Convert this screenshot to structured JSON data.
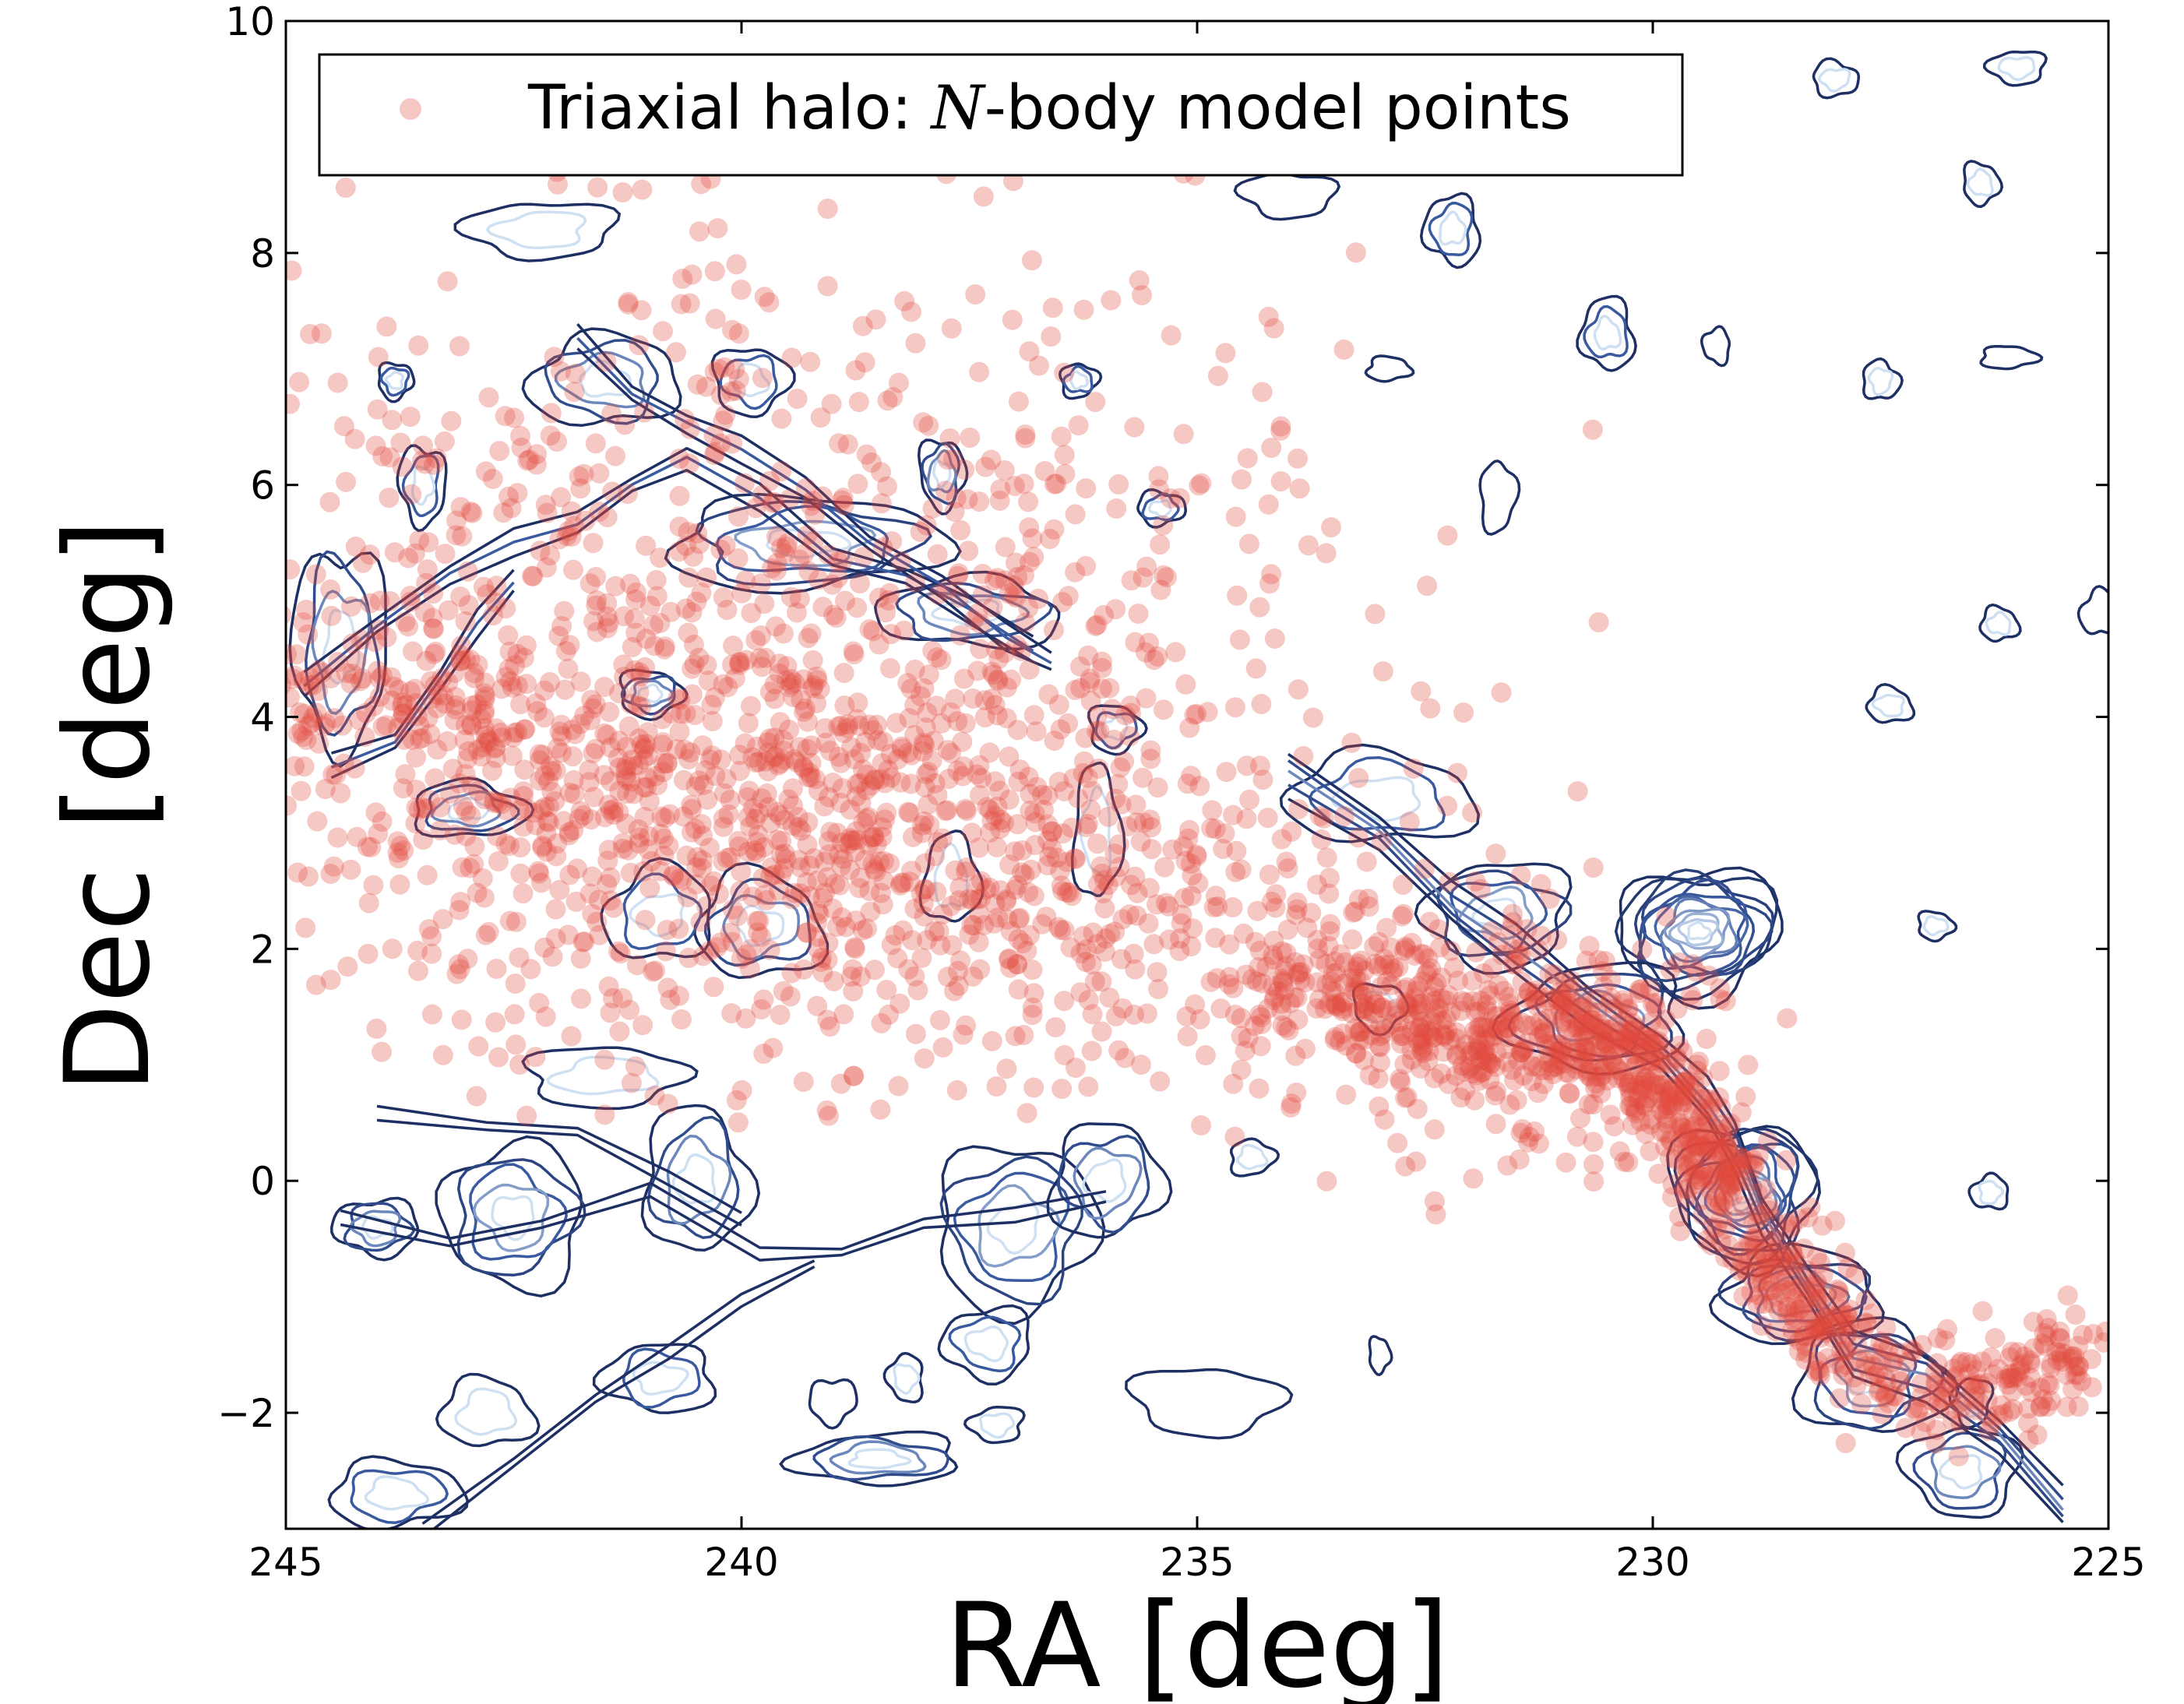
{
  "chart_data": {
    "type": "scatter",
    "xlabel": "RA [deg]",
    "ylabel": "Dec [deg]",
    "xlim": [
      245,
      225
    ],
    "ylim": [
      -3,
      10
    ],
    "x_axis_inverted": true,
    "xticks": [
      245,
      240,
      235,
      230,
      225
    ],
    "yticks": [
      -2,
      0,
      2,
      4,
      6,
      8,
      10
    ],
    "ytick_labels": [
      "−2",
      "0",
      "2",
      "4",
      "6",
      "8",
      "10"
    ],
    "legend": {
      "label_prefix": "Triaxial halo: ",
      "label_math": "N",
      "label_suffix": "-body model points",
      "placement": "top-left"
    },
    "colors": {
      "points": "#e04a3a",
      "contour_outer": "#1d2f63",
      "contour_mid": "#3a5aa0",
      "contour_inner": "#cfe0f2",
      "frame": "#000000"
    },
    "series": [
      {
        "name": "Triaxial halo: N-body model points",
        "kind": "scatter",
        "opacity": 0.3,
        "stream_track": [
          [
            230.0,
            1.0
          ],
          [
            231.5,
            1.3
          ],
          [
            232.5,
            1.4
          ],
          [
            234.0,
            1.9
          ],
          [
            236.0,
            2.4
          ],
          [
            238.0,
            3.0
          ],
          [
            240.0,
            3.2
          ],
          [
            242.0,
            3.5
          ],
          [
            244.0,
            4.0
          ],
          [
            245.0,
            4.2
          ]
        ],
        "core_track": [
          [
            225.2,
            -1.5
          ],
          [
            226.0,
            -1.6
          ],
          [
            227.0,
            -1.9
          ],
          [
            228.0,
            -1.3
          ],
          [
            228.5,
            -0.9
          ],
          [
            229.0,
            -0.3
          ],
          [
            229.3,
            0.2
          ],
          [
            229.6,
            0.5
          ],
          [
            230.0,
            0.9
          ],
          [
            230.5,
            1.2
          ],
          [
            231.0,
            1.3
          ],
          [
            232.0,
            1.2
          ],
          [
            233.0,
            1.5
          ],
          [
            234.0,
            1.7
          ]
        ],
        "cloud": {
          "ra_range": [
            230.5,
            245
          ],
          "dec_range": [
            0.5,
            9.5
          ],
          "center": [
            239.5,
            4.0
          ]
        }
      },
      {
        "name": "density contours",
        "kind": "contour",
        "blobs": [
          {
            "ra": 229.5,
            "dec": 2.15,
            "rx": 0.9,
            "ry": 0.55,
            "levels": 12
          },
          {
            "ra": 229.0,
            "dec": -0.1,
            "rx": 0.8,
            "ry": 0.6,
            "levels": 11
          },
          {
            "ra": 228.4,
            "dec": -1.0,
            "rx": 0.9,
            "ry": 0.4,
            "levels": 6
          },
          {
            "ra": 227.6,
            "dec": -1.7,
            "rx": 0.8,
            "ry": 0.5,
            "levels": 5
          },
          {
            "ra": 226.6,
            "dec": -2.5,
            "rx": 0.6,
            "ry": 0.4,
            "levels": 4
          },
          {
            "ra": 230.6,
            "dec": 1.4,
            "rx": 1.0,
            "ry": 0.45,
            "levels": 5
          },
          {
            "ra": 231.7,
            "dec": 2.3,
            "rx": 0.8,
            "ry": 0.45,
            "levels": 5
          },
          {
            "ra": 233.0,
            "dec": 3.3,
            "rx": 1.0,
            "ry": 0.4,
            "levels": 3
          },
          {
            "ra": 244.0,
            "dec": -0.4,
            "rx": 0.45,
            "ry": 0.25,
            "levels": 4
          },
          {
            "ra": 242.5,
            "dec": -0.3,
            "rx": 0.8,
            "ry": 0.6,
            "levels": 5
          },
          {
            "ra": 240.5,
            "dec": 0.0,
            "rx": 0.6,
            "ry": 0.6,
            "levels": 4
          },
          {
            "ra": 237.0,
            "dec": -0.4,
            "rx": 0.9,
            "ry": 0.7,
            "levels": 5
          },
          {
            "ra": 236.0,
            "dec": 0.0,
            "rx": 0.6,
            "ry": 0.5,
            "levels": 4
          },
          {
            "ra": 238.5,
            "dec": -2.4,
            "rx": 0.9,
            "ry": 0.22,
            "levels": 4
          },
          {
            "ra": 237.3,
            "dec": -1.4,
            "rx": 0.5,
            "ry": 0.3,
            "levels": 3
          },
          {
            "ra": 239.8,
            "dec": 2.2,
            "rx": 0.7,
            "ry": 0.45,
            "levels": 4
          },
          {
            "ra": 240.9,
            "dec": 2.3,
            "rx": 0.6,
            "ry": 0.4,
            "levels": 3
          },
          {
            "ra": 241.0,
            "dec": 4.2,
            "rx": 0.35,
            "ry": 0.2,
            "levels": 4
          },
          {
            "ra": 243.0,
            "dec": 3.2,
            "rx": 0.6,
            "ry": 0.25,
            "levels": 4
          },
          {
            "ra": 244.4,
            "dec": 4.6,
            "rx": 0.5,
            "ry": 0.9,
            "levels": 4
          },
          {
            "ra": 241.5,
            "dec": 6.9,
            "rx": 0.8,
            "ry": 0.4,
            "levels": 4
          },
          {
            "ra": 239.3,
            "dec": 5.5,
            "rx": 1.5,
            "ry": 0.4,
            "levels": 5
          },
          {
            "ra": 237.5,
            "dec": 4.9,
            "rx": 1.0,
            "ry": 0.3,
            "levels": 4
          },
          {
            "ra": 237.8,
            "dec": 6.1,
            "rx": 0.25,
            "ry": 0.3,
            "levels": 4
          },
          {
            "ra": 242.2,
            "dec": 8.2,
            "rx": 0.8,
            "ry": 0.25,
            "levels": 2
          },
          {
            "ra": 239.9,
            "dec": 6.9,
            "rx": 0.4,
            "ry": 0.3,
            "levels": 3
          },
          {
            "ra": 243.8,
            "dec": 6.9,
            "rx": 0.2,
            "ry": 0.15,
            "levels": 3
          },
          {
            "ra": 243.5,
            "dec": 6.0,
            "rx": 0.25,
            "ry": 0.35,
            "levels": 3
          },
          {
            "ra": 236.3,
            "dec": 6.9,
            "rx": 0.2,
            "ry": 0.15,
            "levels": 3
          },
          {
            "ra": 235.4,
            "dec": 5.8,
            "rx": 0.25,
            "ry": 0.15,
            "levels": 3
          },
          {
            "ra": 237.7,
            "dec": 2.6,
            "rx": 0.3,
            "ry": 0.4,
            "levels": 2
          },
          {
            "ra": 236.1,
            "dec": 3.0,
            "rx": 0.25,
            "ry": 0.6,
            "levels": 2
          },
          {
            "ra": 235.9,
            "dec": 3.9,
            "rx": 0.3,
            "ry": 0.2,
            "levels": 3
          },
          {
            "ra": 233.0,
            "dec": 1.5,
            "rx": 0.3,
            "ry": 0.2,
            "levels": 2
          },
          {
            "ra": 234.4,
            "dec": 0.2,
            "rx": 0.25,
            "ry": 0.15,
            "levels": 2
          },
          {
            "ra": 234.9,
            "dec": -1.9,
            "rx": 0.8,
            "ry": 0.3,
            "levels": 1
          },
          {
            "ra": 233.0,
            "dec": -1.5,
            "rx": 0.12,
            "ry": 0.15,
            "levels": 1
          },
          {
            "ra": 232.2,
            "dec": 8.2,
            "rx": 0.3,
            "ry": 0.3,
            "levels": 3
          },
          {
            "ra": 234.0,
            "dec": 8.5,
            "rx": 0.5,
            "ry": 0.2,
            "levels": 1
          },
          {
            "ra": 230.5,
            "dec": 7.3,
            "rx": 0.3,
            "ry": 0.3,
            "levels": 3
          },
          {
            "ra": 229.3,
            "dec": 7.2,
            "rx": 0.15,
            "ry": 0.15,
            "levels": 1
          },
          {
            "ra": 226.1,
            "dec": 7.1,
            "rx": 0.3,
            "ry": 0.1,
            "levels": 1
          },
          {
            "ra": 227.5,
            "dec": 6.9,
            "rx": 0.2,
            "ry": 0.17,
            "levels": 2
          },
          {
            "ra": 232.9,
            "dec": 7.0,
            "rx": 0.25,
            "ry": 0.1,
            "levels": 1
          },
          {
            "ra": 231.7,
            "dec": 5.9,
            "rx": 0.2,
            "ry": 0.3,
            "levels": 1
          },
          {
            "ra": 226.0,
            "dec": 9.6,
            "rx": 0.3,
            "ry": 0.15,
            "levels": 2
          },
          {
            "ra": 228.0,
            "dec": 9.5,
            "rx": 0.25,
            "ry": 0.15,
            "levels": 2
          },
          {
            "ra": 226.4,
            "dec": 8.6,
            "rx": 0.2,
            "ry": 0.18,
            "levels": 2
          },
          {
            "ra": 226.2,
            "dec": 4.8,
            "rx": 0.2,
            "ry": 0.15,
            "levels": 2
          },
          {
            "ra": 225.1,
            "dec": 4.9,
            "rx": 0.2,
            "ry": 0.2,
            "levels": 1
          },
          {
            "ra": 227.4,
            "dec": 4.1,
            "rx": 0.25,
            "ry": 0.15,
            "levels": 2
          },
          {
            "ra": 226.9,
            "dec": 2.2,
            "rx": 0.2,
            "ry": 0.12,
            "levels": 2
          },
          {
            "ra": 226.3,
            "dec": -0.1,
            "rx": 0.2,
            "ry": 0.15,
            "levels": 2
          },
          {
            "ra": 226.5,
            "dec": -1.9,
            "rx": 0.22,
            "ry": 0.2,
            "levels": 2
          },
          {
            "ra": 237.2,
            "dec": -2.1,
            "rx": 0.3,
            "ry": 0.15,
            "levels": 2
          },
          {
            "ra": 238.2,
            "dec": -1.7,
            "rx": 0.2,
            "ry": 0.2,
            "levels": 2
          },
          {
            "ra": 239.0,
            "dec": -1.9,
            "rx": 0.25,
            "ry": 0.2,
            "levels": 1
          },
          {
            "ra": 240.9,
            "dec": -1.7,
            "rx": 0.6,
            "ry": 0.3,
            "levels": 3
          },
          {
            "ra": 243.8,
            "dec": -2.7,
            "rx": 0.7,
            "ry": 0.3,
            "levels": 3
          },
          {
            "ra": 242.8,
            "dec": -2.0,
            "rx": 0.5,
            "ry": 0.3,
            "levels": 2
          },
          {
            "ra": 241.5,
            "dec": 0.9,
            "rx": 0.9,
            "ry": 0.25,
            "levels": 2
          }
        ],
        "tracks": [
          {
            "levels": 3,
            "pts": [
              [
                244.8,
                4.3
              ],
              [
                244.0,
                4.8
              ],
              [
                243.2,
                5.2
              ],
              [
                242.5,
                5.5
              ],
              [
                241.8,
                5.7
              ],
              [
                241.2,
                6.0
              ],
              [
                240.6,
                6.2
              ],
              [
                239.8,
                5.9
              ],
              [
                239.0,
                5.4
              ],
              [
                238.2,
                5.2
              ],
              [
                237.5,
                4.9
              ],
              [
                236.8,
                4.6
              ]
            ]
          },
          {
            "levels": 3,
            "pts": [
              [
                244.5,
                3.6
              ],
              [
                243.8,
                3.8
              ],
              [
                243.3,
                4.3
              ],
              [
                242.9,
                4.8
              ],
              [
                242.5,
                5.2
              ]
            ]
          },
          {
            "levels": 3,
            "pts": [
              [
                241.8,
                7.3
              ],
              [
                241.2,
                6.8
              ],
              [
                240.6,
                6.5
              ],
              [
                240.0,
                6.3
              ],
              [
                239.3,
                6.0
              ],
              [
                238.6,
                5.5
              ],
              [
                237.8,
                5.1
              ],
              [
                237.1,
                4.7
              ],
              [
                236.6,
                4.5
              ]
            ]
          },
          {
            "levels": 2,
            "pts": [
              [
                244.4,
                -0.3
              ],
              [
                243.2,
                -0.5
              ],
              [
                242.2,
                -0.4
              ],
              [
                241.0,
                -0.1
              ],
              [
                239.8,
                -0.6
              ],
              [
                238.9,
                -0.6
              ],
              [
                238.0,
                -0.4
              ],
              [
                237.0,
                -0.3
              ],
              [
                236.0,
                -0.1
              ]
            ]
          },
          {
            "levels": 2,
            "pts": [
              [
                243.5,
                -3.0
              ],
              [
                242.5,
                -2.4
              ],
              [
                241.6,
                -1.9
              ],
              [
                240.8,
                -1.5
              ],
              [
                240.0,
                -1.0
              ],
              [
                239.2,
                -0.7
              ]
            ]
          },
          {
            "levels": 2,
            "pts": [
              [
                244.0,
                0.6
              ],
              [
                242.8,
                0.5
              ],
              [
                241.8,
                0.4
              ],
              [
                240.8,
                0.0
              ],
              [
                240.0,
                -0.3
              ]
            ]
          },
          {
            "levels": 5,
            "pts": [
              [
                225.5,
                -2.8
              ],
              [
                226.2,
                -2.2
              ],
              [
                227.0,
                -1.7
              ],
              [
                227.8,
                -1.5
              ],
              [
                228.3,
                -0.9
              ],
              [
                228.8,
                -0.3
              ],
              [
                229.1,
                0.3
              ],
              [
                229.4,
                0.7
              ],
              [
                229.9,
                1.1
              ],
              [
                230.7,
                1.5
              ],
              [
                231.5,
                2.0
              ],
              [
                232.2,
                2.4
              ],
              [
                233.0,
                3.0
              ],
              [
                234.0,
                3.5
              ]
            ]
          }
        ]
      }
    ]
  }
}
